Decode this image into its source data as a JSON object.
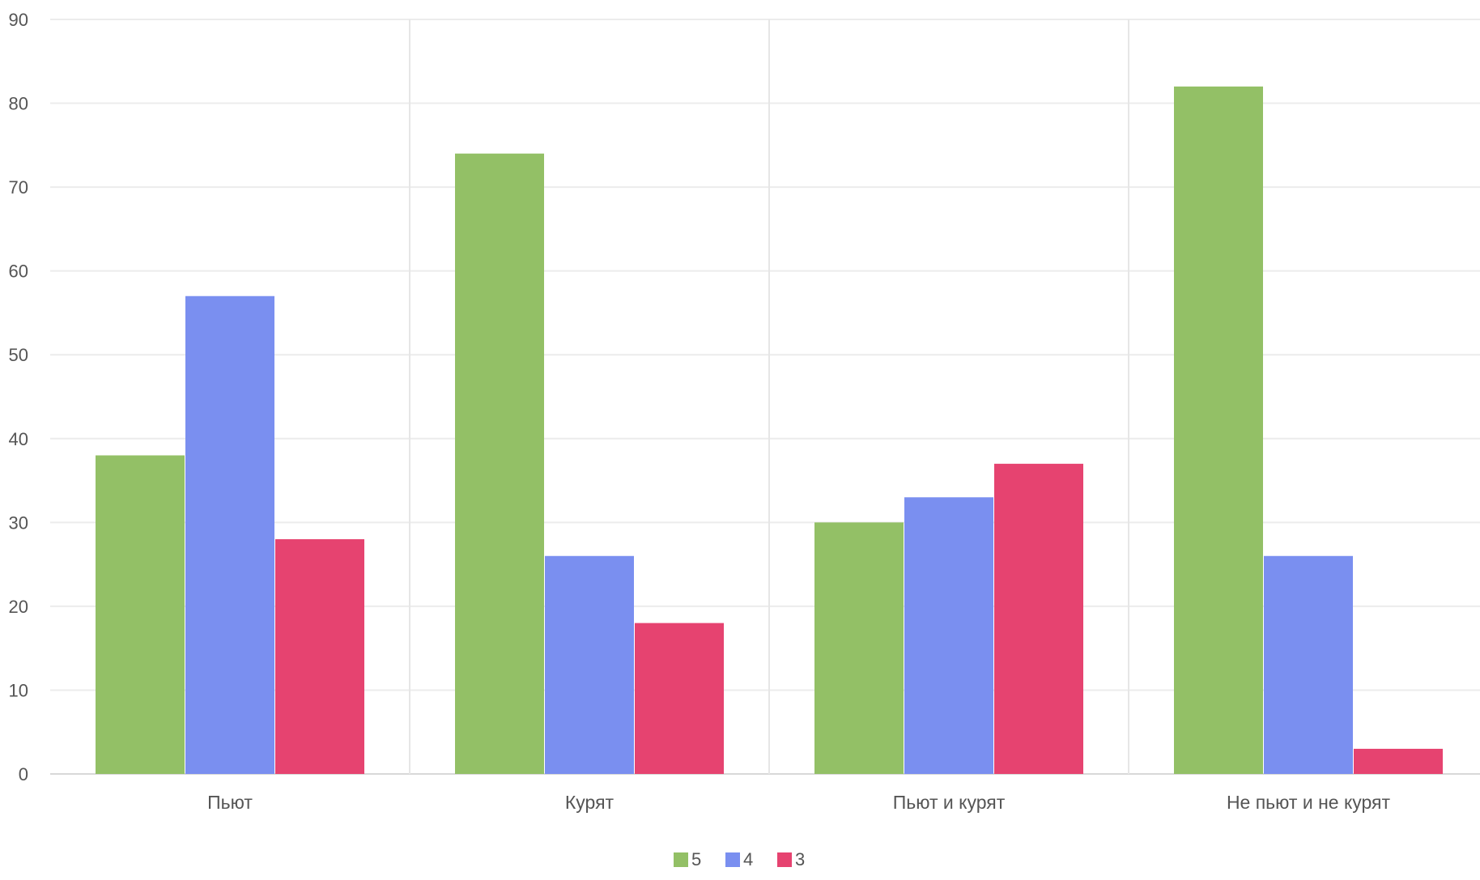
{
  "chart_data": {
    "type": "bar",
    "title": "",
    "xlabel": "",
    "ylabel": "",
    "categories": [
      "Пьют",
      "Курят",
      "Пьют и курят",
      "Не пьют и не курят"
    ],
    "series": [
      {
        "name": "5",
        "color": "#93c066",
        "values": [
          38,
          74,
          30,
          82
        ]
      },
      {
        "name": "4",
        "color": "#7a8ff0",
        "values": [
          57,
          26,
          33,
          26
        ]
      },
      {
        "name": "3",
        "color": "#e64370",
        "values": [
          28,
          18,
          37,
          3
        ]
      }
    ],
    "ylim": [
      0,
      90
    ],
    "yticks": [
      0,
      10,
      20,
      30,
      40,
      50,
      60,
      70,
      80,
      90
    ],
    "grid": true,
    "legend_position": "bottom-center"
  }
}
